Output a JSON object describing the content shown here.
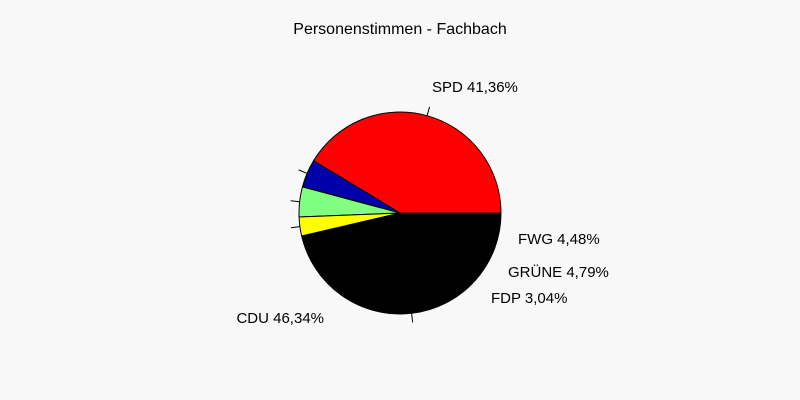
{
  "chart_data": {
    "type": "pie",
    "title": "Personenstimmen - Fachbach",
    "slices": [
      {
        "name": "SPD",
        "value": 41.36,
        "label": "SPD 41,36%",
        "color": "#ff0000"
      },
      {
        "name": "FWG",
        "value": 4.48,
        "label": "FWG 4,48%",
        "color": "#0000aa"
      },
      {
        "name": "GRÜNE",
        "value": 4.79,
        "label": "GRÜNE 4,79%",
        "color": "#80ff80"
      },
      {
        "name": "FDP",
        "value": 3.04,
        "label": "FDP 3,04%",
        "color": "#ffff00"
      },
      {
        "name": "CDU",
        "value": 46.34,
        "label": "CDU 46,34%",
        "color": "#000000"
      }
    ],
    "start_angle_deg": 0,
    "direction": "counterclockwise",
    "legend": "none"
  }
}
